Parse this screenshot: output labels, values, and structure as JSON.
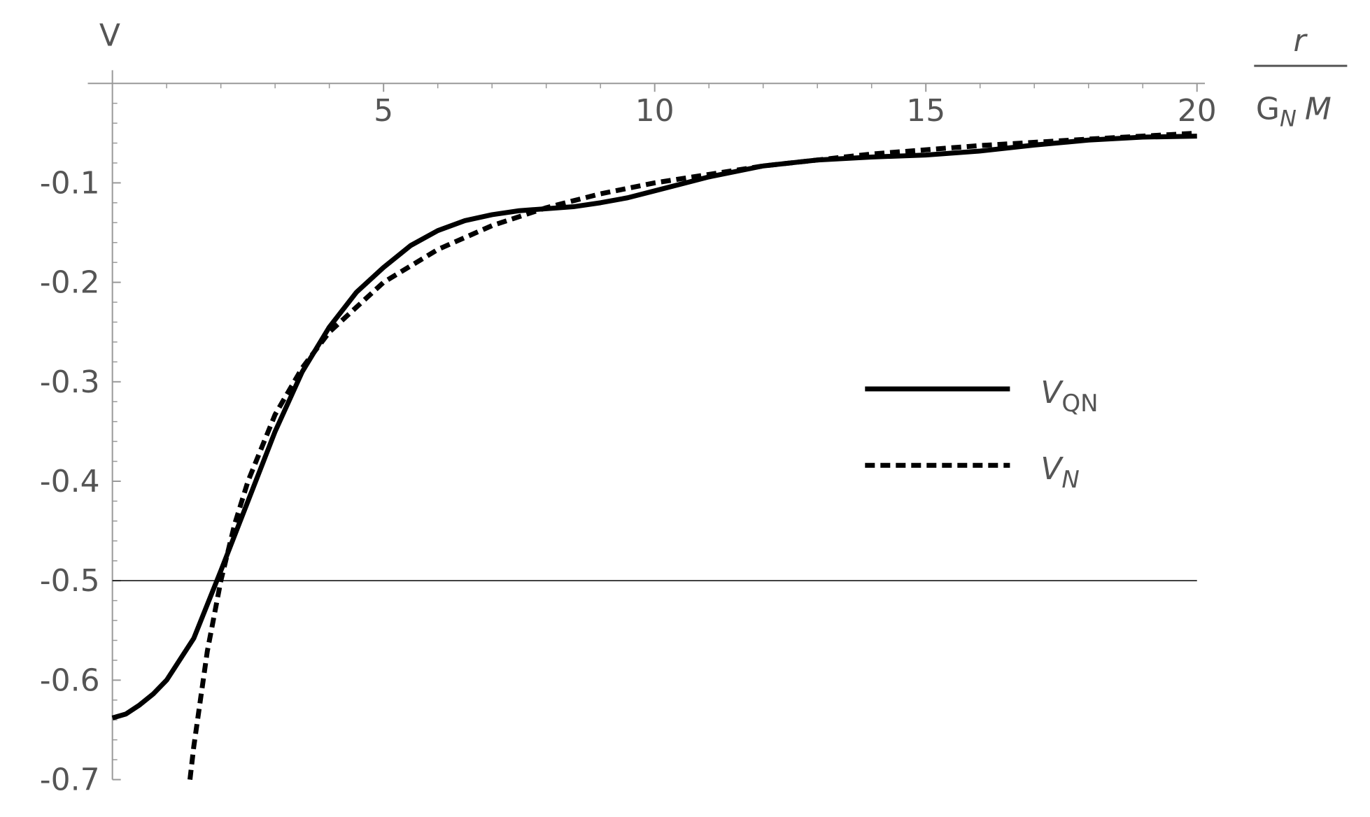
{
  "chart_data": {
    "type": "line",
    "ylabel": "V",
    "xlabel_numerator": "r",
    "xlabel_denominator": [
      "G",
      "N",
      "M"
    ],
    "xlim": [
      0,
      20
    ],
    "ylim": [
      -0.7,
      0
    ],
    "xticks": [
      5,
      10,
      15,
      20
    ],
    "xminorticks": [
      1,
      2,
      3,
      4,
      6,
      7,
      8,
      9,
      11,
      12,
      13,
      14,
      16,
      17,
      18,
      19
    ],
    "yticks": [
      -0.1,
      -0.2,
      -0.3,
      -0.4,
      -0.5,
      -0.6,
      -0.7
    ],
    "yminorticks": [
      -0.02,
      -0.04,
      -0.06,
      -0.08,
      -0.12,
      -0.14,
      -0.16,
      -0.18,
      -0.22,
      -0.24,
      -0.26,
      -0.28,
      -0.32,
      -0.34,
      -0.36,
      -0.38,
      -0.42,
      -0.44,
      -0.46,
      -0.48,
      -0.52,
      -0.54,
      -0.56,
      -0.58,
      -0.62,
      -0.64,
      -0.66,
      -0.68
    ],
    "hline": -0.5,
    "series": [
      {
        "name": "V",
        "name_sub": "QN",
        "color": "#000000",
        "style": "solid",
        "x": [
          0,
          0.25,
          0.5,
          0.75,
          1,
          1.5,
          2,
          2.5,
          3,
          3.5,
          4,
          4.5,
          5,
          5.5,
          6,
          6.5,
          7,
          7.5,
          8,
          8.5,
          9,
          9.5,
          10,
          11,
          12,
          13,
          14,
          15,
          16,
          17,
          18,
          19,
          20
        ],
        "values": [
          -0.638,
          -0.634,
          -0.625,
          -0.614,
          -0.6,
          -0.558,
          -0.49,
          -0.42,
          -0.35,
          -0.29,
          -0.245,
          -0.21,
          -0.185,
          -0.163,
          -0.148,
          -0.138,
          -0.132,
          -0.128,
          -0.126,
          -0.124,
          -0.12,
          -0.115,
          -0.108,
          -0.094,
          -0.083,
          -0.077,
          -0.074,
          -0.072,
          -0.068,
          -0.062,
          -0.057,
          -0.054,
          -0.053
        ]
      },
      {
        "name": "V",
        "name_sub": "N",
        "color": "#000000",
        "style": "dashed",
        "x": [
          1.43,
          1.5,
          1.75,
          2,
          2.25,
          2.5,
          3,
          3.5,
          4,
          5,
          6,
          7,
          8,
          9,
          10,
          12,
          14,
          16,
          18,
          20
        ],
        "values": [
          -0.7,
          -0.667,
          -0.571,
          -0.5,
          -0.444,
          -0.4,
          -0.333,
          -0.286,
          -0.25,
          -0.2,
          -0.167,
          -0.143,
          -0.125,
          -0.111,
          -0.1,
          -0.083,
          -0.071,
          -0.0625,
          -0.056,
          -0.05
        ]
      }
    ]
  }
}
